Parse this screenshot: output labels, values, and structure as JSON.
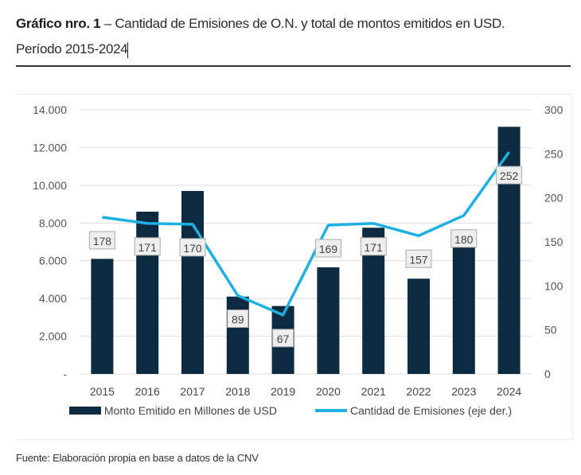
{
  "title": {
    "bold": "Gráfico nro. 1",
    "rest": " – Cantidad de Emisiones de O.N. y total de montos emitidos en USD.",
    "line2": "Período 2015-2024"
  },
  "source": "Fuente: Elaboración propia en base a datos de la CNV",
  "colors": {
    "bar": "#0d2b40",
    "line": "#1fb0e3",
    "grid": "#dcdcdc",
    "label_bg": "#eeeeee",
    "label_border": "#aaaaaa"
  },
  "chart_data": {
    "type": "bar",
    "title": "Cantidad de Emisiones de O.N. y total de montos emitidos en USD. Período 2015-2024",
    "categories": [
      "2015",
      "2016",
      "2017",
      "2018",
      "2019",
      "2020",
      "2021",
      "2022",
      "2023",
      "2024"
    ],
    "series": [
      {
        "name": "Monto Emitido en Millones de USD",
        "type": "bar",
        "axis": "left",
        "values": [
          6100,
          8600,
          9700,
          4100,
          3600,
          5650,
          7750,
          5050,
          6900,
          13100
        ]
      },
      {
        "name": "Cantidad de Emisiones (eje der.)",
        "type": "line",
        "axis": "right",
        "values": [
          178,
          171,
          170,
          89,
          67,
          169,
          171,
          157,
          180,
          252
        ]
      }
    ],
    "left_axis": {
      "ylim": [
        0,
        14000
      ],
      "ticks": [
        "-",
        "2.000",
        "4.000",
        "6.000",
        "8.000",
        "10.000",
        "12.000",
        "14.000"
      ]
    },
    "right_axis": {
      "ylim": [
        0,
        300
      ],
      "ticks": [
        "0",
        "50",
        "100",
        "150",
        "200",
        "250",
        "300"
      ]
    },
    "data_labels": [
      "178",
      "171",
      "170",
      "89",
      "67",
      "169",
      "171",
      "157",
      "180",
      "252"
    ],
    "legend": [
      "Monto Emitido en Millones de USD",
      "Cantidad de Emisiones (eje der.)"
    ],
    "legend_position": "bottom",
    "grid": true
  }
}
